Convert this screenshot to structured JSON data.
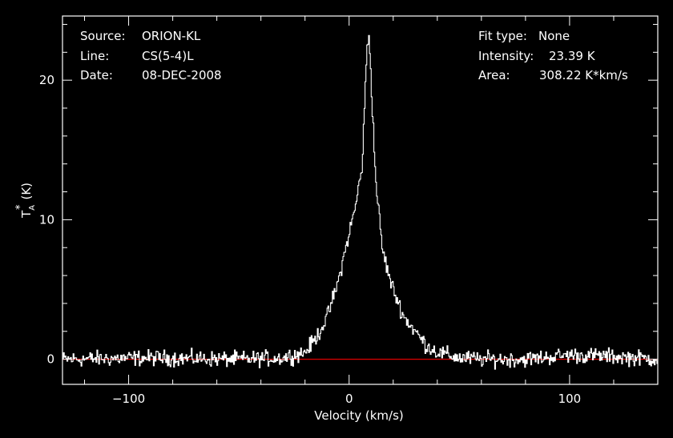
{
  "header": {
    "source_label": "Source:",
    "source_value": "ORION-KL",
    "line_label": "Line:",
    "line_value": "CS(5-4)L",
    "date_label": "Date:",
    "date_value": "08-DEC-2008",
    "fit_label": "Fit type:",
    "fit_value": "None",
    "intensity_label": "Intensity:",
    "intensity_value": "23.39 K",
    "area_label": "Area:",
    "area_value": "308.22 K*km/s"
  },
  "colors": {
    "background": "#000000",
    "axes": "#ffffff",
    "spectrum": "#ffffff",
    "baseline": "#e00000"
  },
  "chart_data": {
    "type": "line",
    "title": "",
    "xlabel": "Velocity (km/s)",
    "ylabel_main": "T",
    "ylabel_sub": "A",
    "ylabel_sup": "*",
    "ylabel_unit": "(K)",
    "xlim": [
      -130,
      140
    ],
    "ylim": [
      -1.8,
      24.6
    ],
    "xticks": [
      -100,
      0,
      100
    ],
    "xtick_labels": [
      "−100",
      "0",
      "100"
    ],
    "yticks": [
      0,
      10,
      20
    ],
    "ytick_labels": [
      "0",
      "10",
      "20"
    ],
    "grid": false,
    "legend": "none",
    "baseline_y": 0,
    "series": [
      {
        "x": [
          -130,
          -90,
          -50,
          -30,
          -20,
          -15,
          -10,
          -5,
          0,
          3,
          6,
          7,
          8,
          9,
          10,
          12,
          15,
          18,
          20,
          25,
          30,
          35,
          40,
          50,
          60,
          80,
          100,
          120,
          140
        ],
        "values": [
          0,
          0.1,
          0,
          0.1,
          0.5,
          1.5,
          3,
          5.5,
          9,
          11,
          14,
          18,
          22,
          23.39,
          20,
          13,
          8,
          6,
          5,
          3,
          2,
          1,
          0.5,
          0.1,
          0,
          0,
          0.3,
          0.2,
          0
        ]
      }
    ]
  }
}
